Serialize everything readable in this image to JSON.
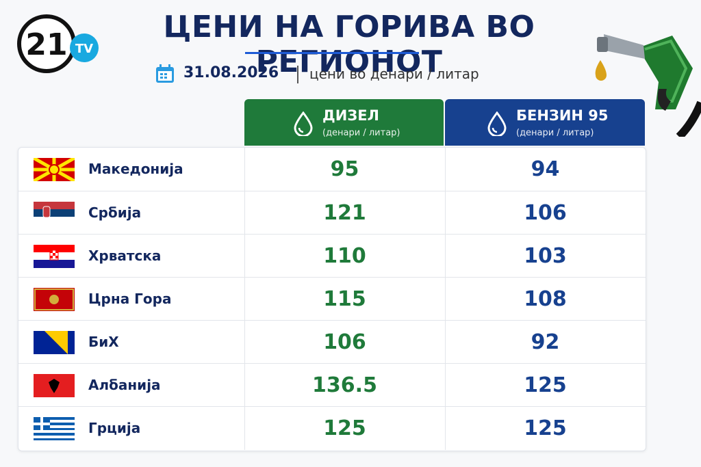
{
  "header": {
    "logo": "21",
    "logo_badge": "TV",
    "title": "ЦЕНИ НА ГОРИВА ВО РЕГИОНОТ",
    "date": "31.08.2026",
    "subtitle": "цени во денари / литар"
  },
  "table": {
    "columns": [
      {
        "name": "ДИЗЕЛ",
        "unit": "(денари / литар)"
      },
      {
        "name": "БЕНЗИН 95",
        "unit": "(денари / литар)"
      }
    ],
    "rows": [
      [
        "Македонија",
        95,
        94
      ],
      [
        "Србија",
        121,
        106
      ],
      [
        "Хрватска",
        110,
        103
      ],
      [
        "Црна Гора",
        115,
        108
      ],
      [
        "БиХ",
        106,
        92
      ],
      [
        "Албанија",
        136.5,
        125
      ],
      [
        "Грција",
        125,
        125
      ]
    ]
  }
}
